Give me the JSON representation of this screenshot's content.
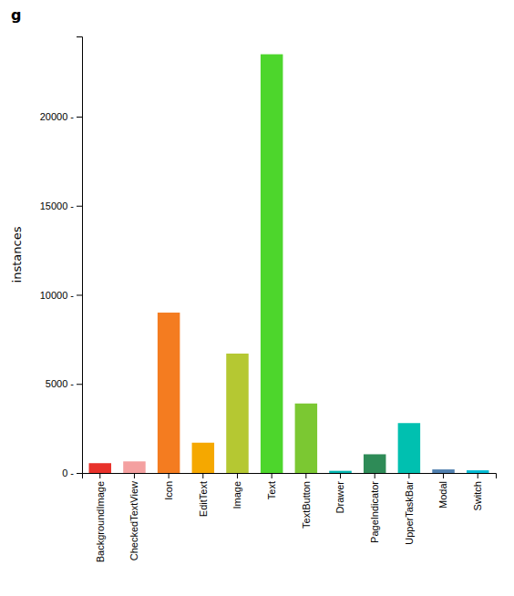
{
  "chart_data": {
    "type": "bar",
    "title": "g",
    "categories": [
      "BackgroundImage",
      "CheckedTextView",
      "Icon",
      "EditText",
      "Image",
      "Text",
      "TextButton",
      "Drawer",
      "PageIndicator",
      "UpperTaskBar",
      "Modal",
      "Switch"
    ],
    "values": [
      550,
      650,
      9000,
      1700,
      6700,
      23500,
      3900,
      120,
      1050,
      2800,
      200,
      150
    ],
    "colors": [
      "#e8312a",
      "#f4a0a0",
      "#f47c20",
      "#f5a800",
      "#b5c832",
      "#4dd62c",
      "#7bc832",
      "#00b5b0",
      "#2e8b57",
      "#00c0b0",
      "#5080b0",
      "#00bcd4"
    ],
    "ylabel": "instances",
    "ylim": [
      0,
      24500
    ],
    "yticks": [
      {
        "value": 0,
        "label": "0 -"
      },
      {
        "value": 5000,
        "label": "5000 -"
      },
      {
        "value": 10000,
        "label": "10000 -"
      },
      {
        "value": 15000,
        "label": "15000 -"
      },
      {
        "value": 20000,
        "label": "20000 -"
      }
    ],
    "grid": false
  }
}
